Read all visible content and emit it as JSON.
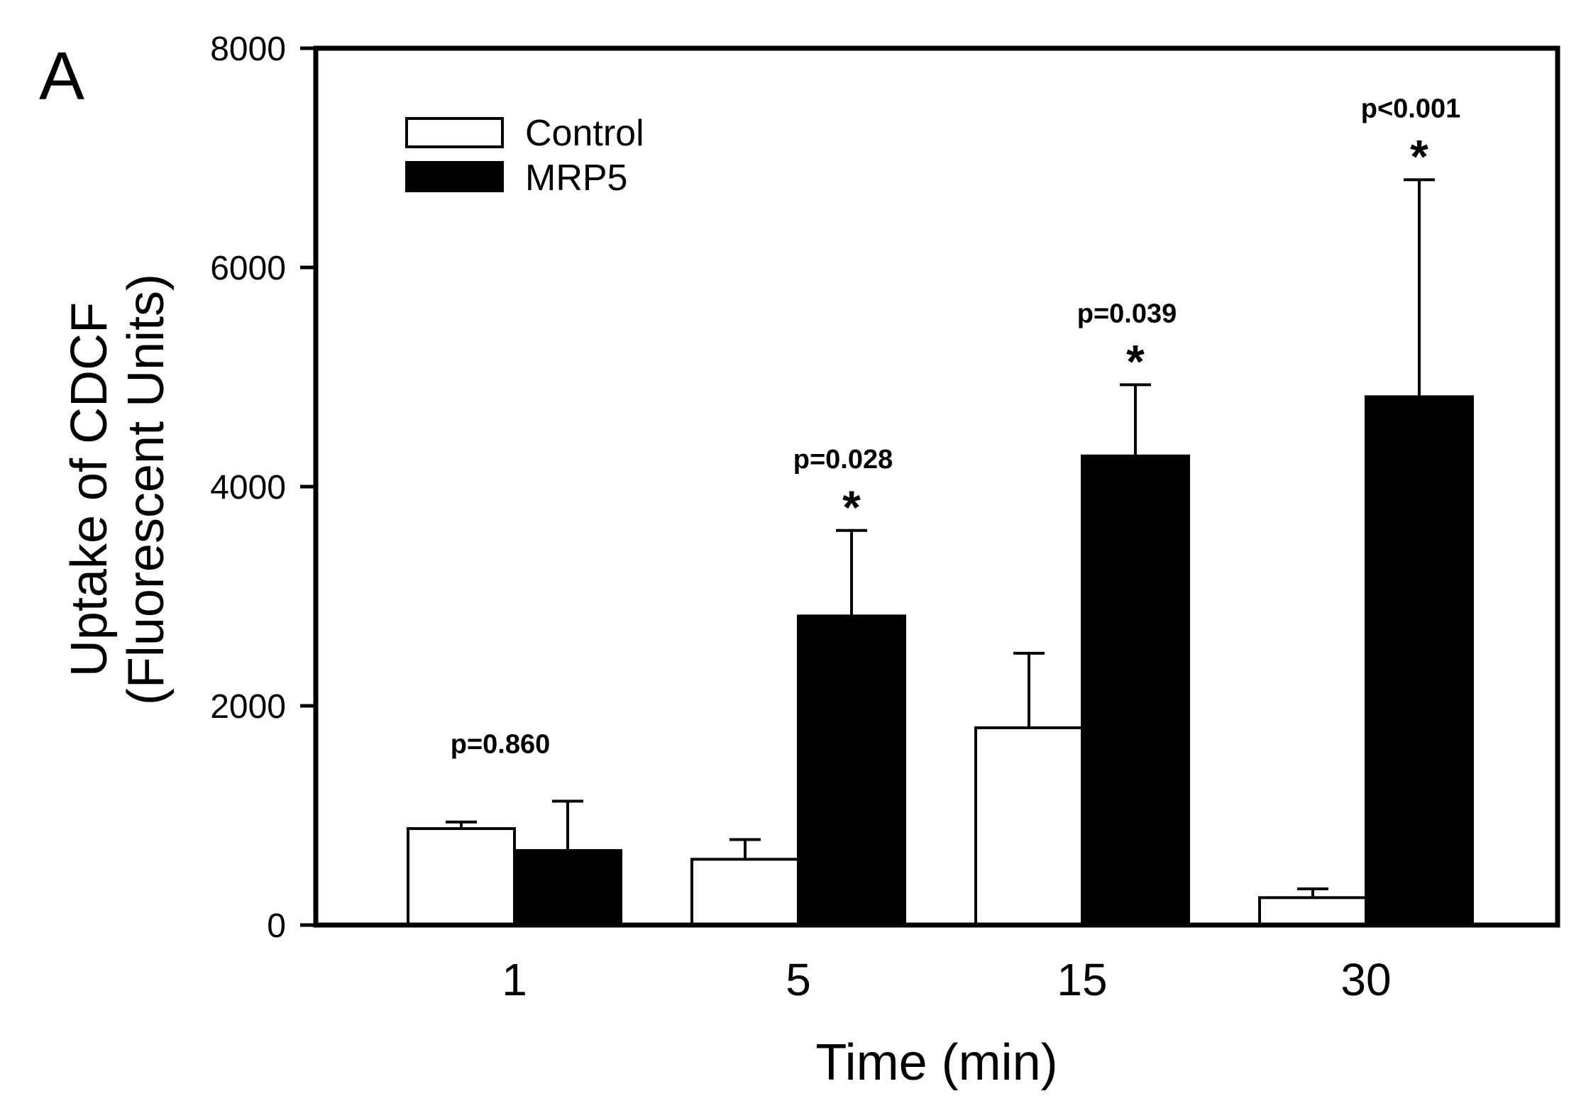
{
  "chart_data": {
    "type": "bar",
    "panel_label": "A",
    "title": "",
    "xlabel": "Time (min)",
    "ylabel_line1": "Uptake of CDCF",
    "ylabel_line2": "(Fluorescent Units)",
    "ylim": [
      0,
      8000
    ],
    "yticks": [
      "0",
      "2000",
      "4000",
      "6000",
      "8000"
    ],
    "categories": [
      "1",
      "5",
      "15",
      "30"
    ],
    "series": [
      {
        "name": "Control",
        "color": "#ffffff",
        "values": [
          880,
          600,
          1800,
          250
        ],
        "errors": [
          60,
          180,
          680,
          80
        ]
      },
      {
        "name": "MRP5",
        "color": "#000000",
        "values": [
          680,
          2820,
          4280,
          4820
        ],
        "errors": [
          450,
          780,
          650,
          1980
        ]
      }
    ],
    "legend_position": "top-left",
    "annotations": [
      {
        "category": "1",
        "text": "p=0.860",
        "star": ""
      },
      {
        "category": "5",
        "text": "p=0.028",
        "star": "*"
      },
      {
        "category": "15",
        "text": "p=0.039",
        "star": "*"
      },
      {
        "category": "30",
        "text": "p<0.001",
        "star": "*"
      }
    ]
  }
}
